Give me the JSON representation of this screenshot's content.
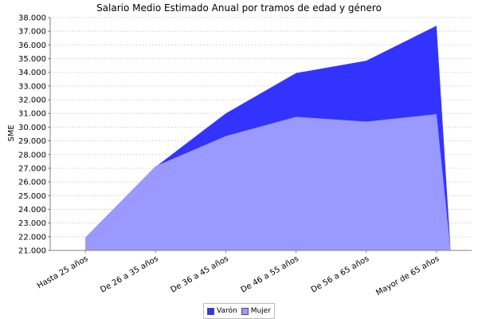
{
  "chart_data": {
    "type": "area",
    "title": "Salario Medio Estimado Anual por tramos de edad y género",
    "xlabel": "",
    "ylabel": "SME",
    "categories": [
      "Hasta 25  años",
      "De 26  a 35  años",
      "De 36  a 45 años",
      "De 46 a 55  años",
      "De 56  a 65  años",
      "Mayor de 65  años"
    ],
    "ylim": [
      21000,
      38000
    ],
    "ytick_labels": [
      "21.000",
      "22.000",
      "23.000",
      "24.000",
      "25.000",
      "26.000",
      "27.000",
      "28.000",
      "29.000",
      "30.000",
      "31.000",
      "32.000",
      "33.000",
      "34.000",
      "35.000",
      "36.000",
      "37.000",
      "38.000"
    ],
    "series": [
      {
        "name": "Varón",
        "color": "#3333ff",
        "values": [
          21000,
          27100,
          31000,
          33950,
          34850,
          37400
        ]
      },
      {
        "name": "Mujer",
        "color": "#9999ff",
        "values": [
          21950,
          27150,
          29350,
          30750,
          30400,
          30950
        ]
      }
    ],
    "grid": true,
    "legend_position": "bottom-center"
  }
}
